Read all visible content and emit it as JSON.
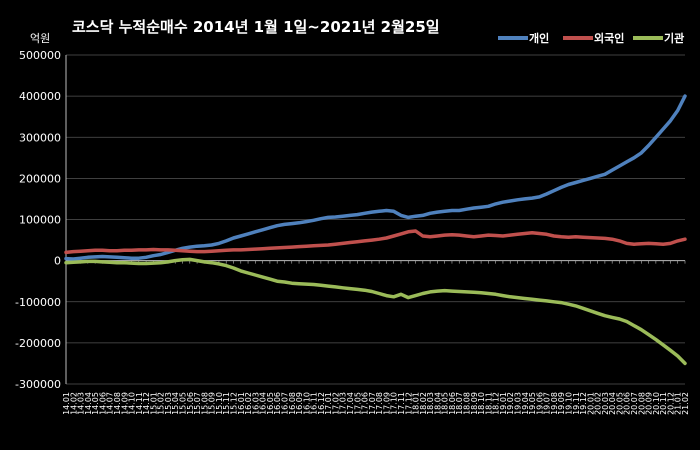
{
  "chart_data": {
    "type": "line",
    "title": "코스닥 누적순매수 2014년 1월 1일~2021년 2월25일",
    "unit_label": "억원",
    "ylim": [
      -300000,
      500000
    ],
    "yticks": [
      500000,
      400000,
      300000,
      200000,
      100000,
      0,
      -100000,
      -200000,
      -300000
    ],
    "grid": true,
    "legend_position": "top-right",
    "x": [
      "14.01",
      "14.02",
      "14.03",
      "14.04",
      "14.05",
      "14.06",
      "14.07",
      "14.08",
      "14.09",
      "14.10",
      "14.11",
      "14.12",
      "15.01",
      "15.02",
      "15.03",
      "15.04",
      "15.05",
      "15.06",
      "15.07",
      "15.08",
      "15.09",
      "15.10",
      "15.11",
      "15.12",
      "16.01",
      "16.02",
      "16.03",
      "16.04",
      "16.05",
      "16.06",
      "16.07",
      "16.08",
      "16.09",
      "16.10",
      "16.11",
      "16.12",
      "17.01",
      "17.02",
      "17.03",
      "17.04",
      "17.05",
      "17.06",
      "17.07",
      "17.08",
      "17.09",
      "17.10",
      "17.11",
      "17.12",
      "18.01",
      "18.02",
      "18.03",
      "18.04",
      "18.05",
      "18.06",
      "18.07",
      "18.08",
      "18.09",
      "18.10",
      "18.11",
      "18.12",
      "19.01",
      "19.02",
      "19.03",
      "19.04",
      "19.05",
      "19.06",
      "19.07",
      "19.08",
      "19.09",
      "19.10",
      "19.11",
      "19.12",
      "20.01",
      "20.02",
      "20.03",
      "20.04",
      "20.05",
      "20.06",
      "20.07",
      "20.08",
      "20.09",
      "20.10",
      "20.11",
      "20.12",
      "21.01",
      "21.02"
    ],
    "series": [
      {
        "name": "개인",
        "color": "#4F81BD",
        "values": [
          5000,
          4000,
          6000,
          8000,
          9000,
          10000,
          9000,
          8000,
          7000,
          6000,
          6000,
          8000,
          12000,
          15000,
          20000,
          25000,
          30000,
          33000,
          35000,
          36000,
          38000,
          42000,
          48000,
          55000,
          60000,
          65000,
          70000,
          75000,
          80000,
          85000,
          88000,
          90000,
          92000,
          95000,
          98000,
          102000,
          105000,
          106000,
          108000,
          110000,
          112000,
          115000,
          118000,
          120000,
          122000,
          120000,
          110000,
          105000,
          108000,
          110000,
          115000,
          118000,
          120000,
          122000,
          122000,
          125000,
          128000,
          130000,
          132000,
          138000,
          142000,
          145000,
          148000,
          150000,
          152000,
          155000,
          162000,
          170000,
          178000,
          185000,
          190000,
          195000,
          200000,
          205000,
          210000,
          220000,
          230000,
          240000,
          250000,
          262000,
          280000,
          300000,
          320000,
          340000,
          365000,
          400000
        ]
      },
      {
        "name": "외국인",
        "color": "#C0504D",
        "values": [
          20000,
          22000,
          23000,
          24000,
          25000,
          25000,
          24000,
          24000,
          25000,
          25000,
          26000,
          26000,
          27000,
          26000,
          26000,
          25000,
          24000,
          23000,
          22000,
          22000,
          23000,
          24000,
          25000,
          26000,
          26000,
          27000,
          28000,
          29000,
          30000,
          31000,
          32000,
          33000,
          34000,
          35000,
          36000,
          37000,
          38000,
          40000,
          42000,
          44000,
          46000,
          48000,
          50000,
          52000,
          55000,
          60000,
          65000,
          70000,
          72000,
          60000,
          58000,
          60000,
          62000,
          63000,
          62000,
          60000,
          58000,
          60000,
          62000,
          61000,
          60000,
          62000,
          64000,
          66000,
          68000,
          66000,
          64000,
          60000,
          58000,
          57000,
          58000,
          57000,
          56000,
          55000,
          54000,
          52000,
          48000,
          42000,
          40000,
          41000,
          42000,
          41000,
          40000,
          42000,
          48000,
          52000
        ]
      },
      {
        "name": "기관",
        "color": "#9BBB59",
        "values": [
          -5000,
          -4000,
          -3000,
          -2000,
          -2000,
          -3000,
          -4000,
          -5000,
          -5000,
          -6000,
          -7000,
          -7000,
          -6000,
          -5000,
          -3000,
          0,
          2000,
          3000,
          0,
          -3000,
          -5000,
          -8000,
          -12000,
          -18000,
          -25000,
          -30000,
          -35000,
          -40000,
          -45000,
          -50000,
          -52000,
          -55000,
          -56000,
          -57000,
          -58000,
          -60000,
          -62000,
          -64000,
          -66000,
          -68000,
          -70000,
          -72000,
          -75000,
          -80000,
          -85000,
          -88000,
          -82000,
          -90000,
          -85000,
          -80000,
          -76000,
          -74000,
          -73000,
          -74000,
          -75000,
          -76000,
          -77000,
          -78000,
          -80000,
          -82000,
          -85000,
          -88000,
          -90000,
          -92000,
          -94000,
          -96000,
          -98000,
          -100000,
          -102000,
          -106000,
          -110000,
          -116000,
          -122000,
          -128000,
          -134000,
          -138000,
          -142000,
          -148000,
          -158000,
          -168000,
          -180000,
          -192000,
          -205000,
          -218000,
          -232000,
          -250000
        ]
      }
    ]
  }
}
